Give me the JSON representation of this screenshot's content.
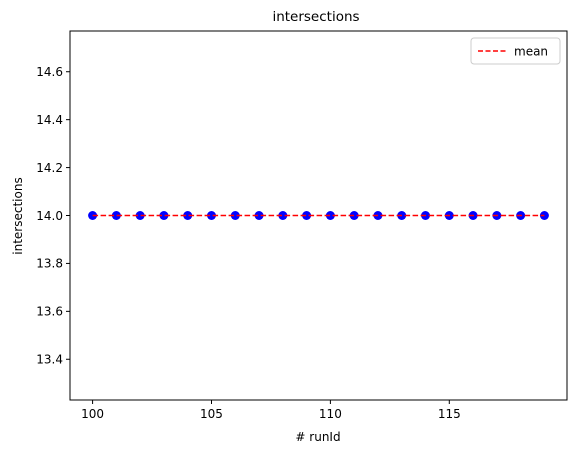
{
  "chart_data": {
    "type": "scatter",
    "title": "intersections",
    "xlabel": "# runId",
    "ylabel": "intersections",
    "xlim": [
      99.05,
      119.95
    ],
    "ylim": [
      13.23,
      14.77
    ],
    "xticks": [
      100,
      105,
      110,
      115
    ],
    "yticks": [
      13.4,
      13.6,
      13.8,
      14.0,
      14.2,
      14.4,
      14.6
    ],
    "ytick_labels": [
      "13.4",
      "13.6",
      "13.8",
      "14.0",
      "14.2",
      "14.4",
      "14.6"
    ],
    "grid": false,
    "legend_position": "top-right",
    "series": [
      {
        "kind": "points",
        "color": "#0000ff",
        "x": [
          100,
          101,
          102,
          103,
          104,
          105,
          106,
          107,
          108,
          109,
          110,
          111,
          112,
          113,
          114,
          115,
          116,
          117,
          118,
          119
        ],
        "y": [
          14,
          14,
          14,
          14,
          14,
          14,
          14,
          14,
          14,
          14,
          14,
          14,
          14,
          14,
          14,
          14,
          14,
          14,
          14,
          14
        ]
      },
      {
        "kind": "dashed-line",
        "name": "mean",
        "color": "#ff0000",
        "x": [
          100,
          119
        ],
        "y": [
          14,
          14
        ]
      }
    ]
  }
}
